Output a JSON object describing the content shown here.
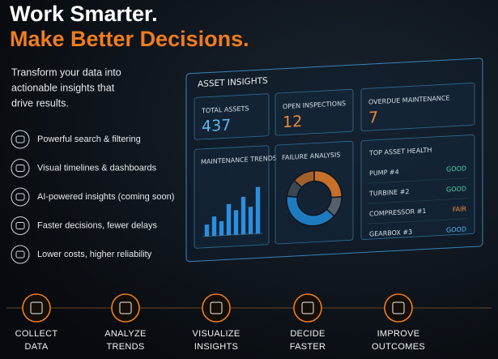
{
  "header": {
    "title_line1": "Work Smarter.",
    "title_line2": "Make Better Decisions.",
    "subtitle": [
      "Transform your data into",
      "actionable insights that",
      "drive results."
    ]
  },
  "features": [
    "Powerful search & filtering",
    "Visual timelines & dashboards",
    "AI-powered insights (coming soon)",
    "Faster decisions, fewer delays",
    "Lower costs, higher reliability"
  ],
  "dashboard": {
    "title": "ASSET INSIGHTS",
    "cards": [
      {
        "label": "TOTAL ASSETS",
        "value": 437,
        "color": "#5bb8f0"
      },
      {
        "label": "OPEN INSPECTIONS",
        "value": 12,
        "color": "#f08a35"
      },
      {
        "label": "OVERDUE MAINTENANCE",
        "value": 7,
        "color": "#f08a35"
      }
    ],
    "maintenance_trends": {
      "title": "MAINTENANCE TRENDS",
      "values": [
        18,
        30,
        22,
        48,
        38,
        58,
        42,
        72
      ],
      "ylim": [
        0,
        100
      ],
      "color": "#2b8fe0"
    },
    "failure_analysis": {
      "title": "FAILURE ANALYSIS",
      "values": [
        25,
        12,
        40,
        10,
        13
      ],
      "colors": [
        "#c8702a",
        "#55606c",
        "#1f7bbf",
        "#3a4652",
        "#a0602c"
      ]
    },
    "asset_health": {
      "title": "TOP ASSET HEALTH",
      "rows": [
        {
          "asset": "PUMP #4",
          "status": "GOOD",
          "color": "#4fd1a5"
        },
        {
          "asset": "TURBINE #2",
          "status": "GOOD",
          "color": "#4fd1a5"
        },
        {
          "asset": "COMPRESSOR #1",
          "status": "FAIR",
          "color": "#f08a35"
        },
        {
          "asset": "GEARBOX #3",
          "status": "GOOD",
          "color": "#5bb8f0"
        }
      ]
    }
  },
  "steps": [
    [
      "COLLECT",
      "DATA"
    ],
    [
      "ANALYZE",
      "TRENDS"
    ],
    [
      "VISUALIZE",
      "INSIGHTS"
    ],
    [
      "DECIDE",
      "FASTER"
    ],
    [
      "IMPROVE",
      "OUTCOMES"
    ]
  ]
}
